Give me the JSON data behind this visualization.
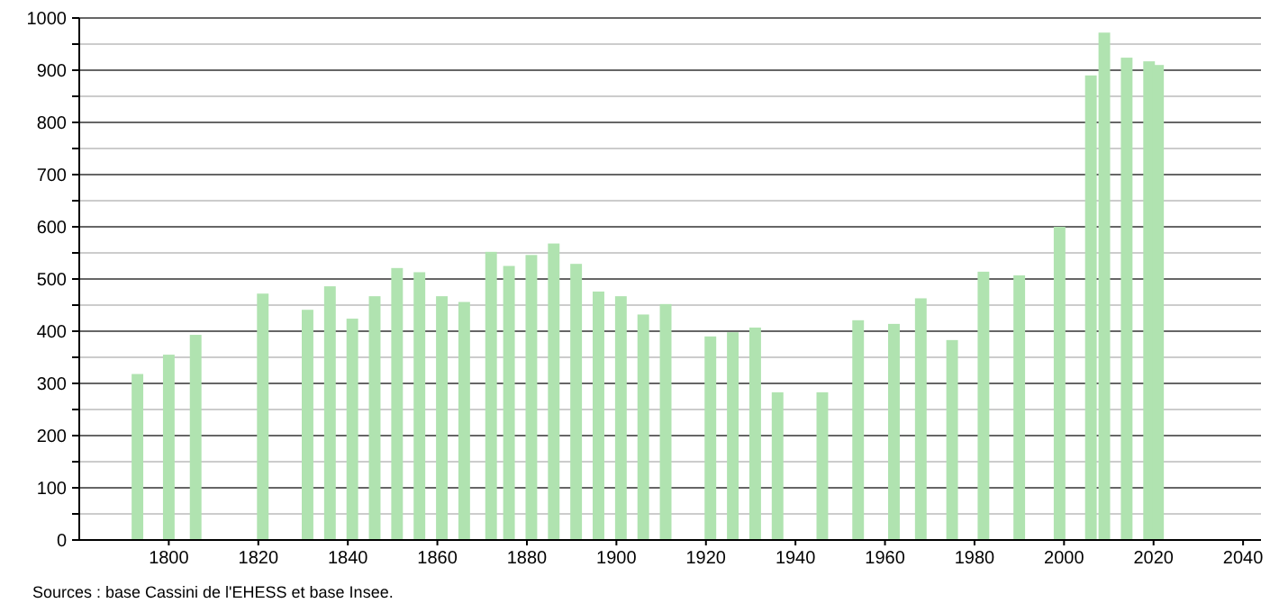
{
  "chart_data": {
    "type": "bar",
    "x": [
      1793,
      1800,
      1806,
      1821,
      1831,
      1836,
      1841,
      1846,
      1851,
      1856,
      1861,
      1866,
      1872,
      1876,
      1881,
      1886,
      1891,
      1896,
      1901,
      1906,
      1911,
      1921,
      1926,
      1931,
      1936,
      1946,
      1954,
      1962,
      1968,
      1975,
      1982,
      1990,
      1999,
      2006,
      2009,
      2014,
      2019,
      2021
    ],
    "values": [
      318,
      355,
      393,
      472,
      441,
      486,
      424,
      467,
      521,
      513,
      467,
      456,
      552,
      525,
      546,
      568,
      529,
      476,
      467,
      432,
      452,
      390,
      398,
      407,
      283,
      283,
      421,
      414,
      463,
      383,
      514,
      507,
      600,
      890,
      972,
      924,
      917,
      910
    ],
    "color": "#b0e3b0",
    "xlim": [
      1780,
      2044
    ],
    "xticks": [
      1800,
      1820,
      1840,
      1860,
      1880,
      1900,
      1920,
      1940,
      1960,
      1980,
      2000,
      2020,
      2040
    ],
    "ylim": [
      0,
      1000
    ],
    "yticks": [
      0,
      {
        "value": 50,
        "label": null
      },
      100,
      {
        "value": 150,
        "label": null
      },
      200,
      {
        "value": 250,
        "label": null
      },
      300,
      {
        "value": 350,
        "label": null
      },
      400,
      {
        "value": 450,
        "label": null
      },
      500,
      {
        "value": 550,
        "label": null
      },
      600,
      {
        "value": 650,
        "label": null
      },
      700,
      {
        "value": 750,
        "label": null
      },
      800,
      {
        "value": 850,
        "label": null
      },
      900,
      {
        "value": 950,
        "label": null
      },
      1000
    ],
    "grid": "y",
    "annotations": [
      "Sources : base Cassini de l'EHESS et base Insee."
    ]
  }
}
